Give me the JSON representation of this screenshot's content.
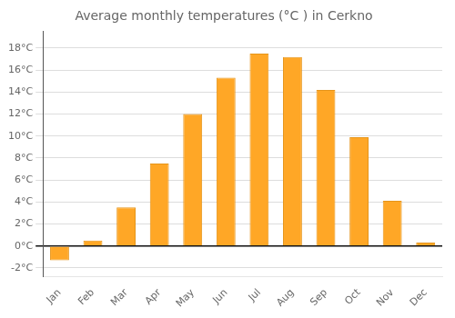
{
  "chart_data": {
    "type": "bar",
    "title": "Average monthly temperatures (°C ) in Cerkno",
    "categories": [
      "Jan",
      "Feb",
      "Mar",
      "Apr",
      "May",
      "Jun",
      "Jul",
      "Aug",
      "Sep",
      "Oct",
      "Nov",
      "Dec"
    ],
    "values": [
      -1.3,
      0.5,
      3.5,
      7.5,
      12.0,
      15.3,
      17.5,
      17.2,
      14.2,
      9.9,
      4.1,
      0.3
    ],
    "color": "#FFA726",
    "ylim": [
      -2.8,
      19.5
    ],
    "yticks": [
      {
        "value": -2,
        "label": "-2°C"
      },
      {
        "value": 0,
        "label": "0°C"
      },
      {
        "value": 2,
        "label": "2°C"
      },
      {
        "value": 4,
        "label": "4°C"
      },
      {
        "value": 6,
        "label": "6°C"
      },
      {
        "value": 8,
        "label": "8°C"
      },
      {
        "value": 10,
        "label": "10°C"
      },
      {
        "value": 12,
        "label": "12°C"
      },
      {
        "value": 14,
        "label": "14°C"
      },
      {
        "value": 16,
        "label": "16°C"
      },
      {
        "value": 18,
        "label": "18°C"
      }
    ],
    "grid": true
  }
}
